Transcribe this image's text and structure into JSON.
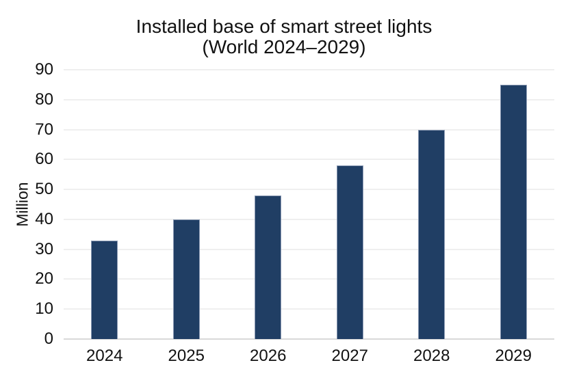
{
  "chart_data": {
    "type": "bar",
    "title": "Installed base of smart street lights (World 2024–2029)",
    "title_lines": [
      "Installed base of smart street lights",
      "(World 2024–2029)"
    ],
    "ylabel": "Million",
    "xlabel": "",
    "categories": [
      "2024",
      "2025",
      "2026",
      "2027",
      "2028",
      "2029"
    ],
    "values": [
      33,
      40,
      48,
      58,
      70,
      85
    ],
    "unit": "million",
    "ylim": [
      0,
      90
    ],
    "yticks": [
      0,
      10,
      20,
      30,
      40,
      50,
      60,
      70,
      80,
      90
    ],
    "grid": "horizontal-only",
    "legend": "none",
    "colors": {
      "bar_fill": "#203e64",
      "bar_border": "#8a99b3",
      "gridline": "#efefef",
      "axis_line": "#d9d9d9",
      "text": "#111111",
      "background": "#ffffff"
    }
  }
}
